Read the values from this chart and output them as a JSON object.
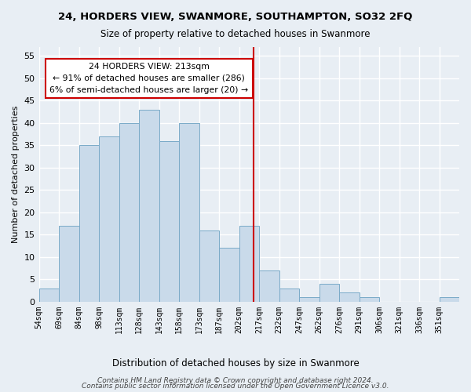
{
  "title": "24, HORDERS VIEW, SWANMORE, SOUTHAMPTON, SO32 2FQ",
  "subtitle": "Size of property relative to detached houses in Swanmore",
  "xlabel": "Distribution of detached houses by size in Swanmore",
  "ylabel": "Number of detached properties",
  "bar_labels": [
    "54sqm",
    "69sqm",
    "84sqm",
    "98sqm",
    "113sqm",
    "128sqm",
    "143sqm",
    "158sqm",
    "173sqm",
    "187sqm",
    "202sqm",
    "217sqm",
    "232sqm",
    "247sqm",
    "262sqm",
    "276sqm",
    "291sqm",
    "306sqm",
    "321sqm",
    "336sqm",
    "351sqm"
  ],
  "bar_values": [
    3,
    17,
    35,
    37,
    40,
    43,
    36,
    40,
    16,
    12,
    17,
    7,
    3,
    1,
    4,
    2,
    1,
    0,
    0,
    0,
    1
  ],
  "bar_color": "#c9daea",
  "bar_edge_color": "#7aaac8",
  "property_line_x": 10,
  "annotation_title": "24 HORDERS VIEW: 213sqm",
  "annotation_line1": "← 91% of detached houses are smaller (286)",
  "annotation_line2": "6% of semi-detached houses are larger (20) →",
  "annotation_box_color": "#ffffff",
  "annotation_border_color": "#cc0000",
  "vline_color": "#cc0000",
  "ylim": [
    0,
    57
  ],
  "yticks": [
    0,
    5,
    10,
    15,
    20,
    25,
    30,
    35,
    40,
    45,
    50,
    55
  ],
  "footer_line1": "Contains HM Land Registry data © Crown copyright and database right 2024.",
  "footer_line2": "Contains public sector information licensed under the Open Government Licence v3.0.",
  "background_color": "#e8eef4",
  "grid_color": "#ffffff"
}
